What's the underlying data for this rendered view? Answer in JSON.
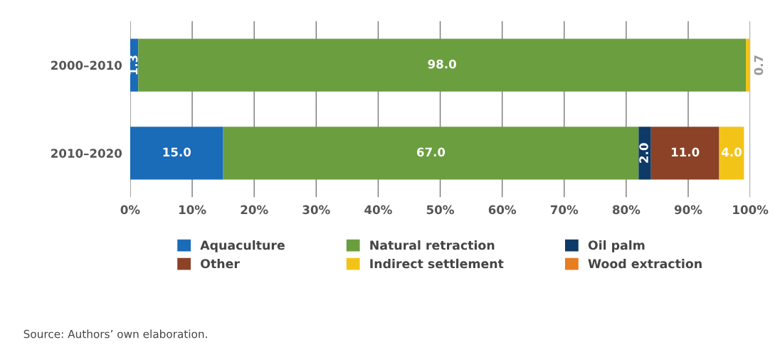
{
  "chart_data": {
    "type": "bar",
    "orientation": "horizontal",
    "stacked": true,
    "categories": [
      "2000–2010",
      "2010–2020"
    ],
    "series": [
      {
        "name": "Aquaculture",
        "color": "#1a6bb8",
        "values": [
          1.3,
          15.0
        ],
        "value_labels": [
          "1.3",
          "15.0"
        ]
      },
      {
        "name": "Natural retraction",
        "color": "#6a9e3f",
        "values": [
          98.0,
          67.0
        ],
        "value_labels": [
          "98.0",
          "67.0"
        ]
      },
      {
        "name": "Oil palm",
        "color": "#0d3a66",
        "values": [
          null,
          2.0
        ],
        "value_labels": [
          null,
          "2.0"
        ]
      },
      {
        "name": "Other",
        "color": "#8b4226",
        "values": [
          null,
          11.0
        ],
        "value_labels": [
          null,
          "11.0"
        ]
      },
      {
        "name": "Indirect settlement",
        "color": "#f2c418",
        "values": [
          0.7,
          4.0
        ],
        "value_labels": [
          "0.7",
          "4.0"
        ]
      },
      {
        "name": "Wood extraction",
        "color": "#e87d22",
        "values": [
          null,
          null
        ],
        "value_labels": [
          null,
          null
        ]
      }
    ],
    "xlim": [
      0,
      100
    ],
    "xticks": [
      {
        "value": 0,
        "label": "0%"
      },
      {
        "value": 10,
        "label": "10%"
      },
      {
        "value": 20,
        "label": "20%"
      },
      {
        "value": 30,
        "label": "30%"
      },
      {
        "value": 40,
        "label": "40%"
      },
      {
        "value": 50,
        "label": "50%"
      },
      {
        "value": 60,
        "label": "60%"
      },
      {
        "value": 70,
        "label": "70%"
      },
      {
        "value": 80,
        "label": "80%"
      },
      {
        "value": 90,
        "label": "90%"
      },
      {
        "value": 100,
        "label": "100%"
      }
    ],
    "grid": "x",
    "legend": "bottom",
    "annotations": [
      "Source: Authors’ own elaboration."
    ]
  }
}
